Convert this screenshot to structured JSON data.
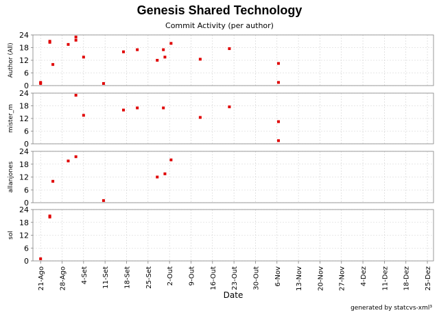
{
  "title": "Genesis Shared Technology",
  "subtitle": "Commit Activity (per author)",
  "footer": "generated by statcvs-xml³",
  "chart_data": {
    "type": "scatter",
    "xlabel": "Date",
    "x_ticks": [
      "21-Ago",
      "28-Ago",
      "4-Set",
      "11-Set",
      "18-Set",
      "25-Set",
      "2-Out",
      "9-Out",
      "16-Out",
      "23-Out",
      "30-Out",
      "6-Nov",
      "13-Nov",
      "20-Nov",
      "27-Nov",
      "4-Dez",
      "11-Dez",
      "18-Dez",
      "25-Dez"
    ],
    "x_range_days": [
      -2.5,
      128
    ],
    "ylim": [
      0,
      24
    ],
    "y_ticks": [
      0,
      6,
      12,
      18,
      24
    ],
    "grid": true,
    "series": [
      {
        "name": "Author (All)",
        "points": [
          [
            0,
            1
          ],
          [
            0,
            1.5
          ],
          [
            3,
            20.5
          ],
          [
            3,
            21
          ],
          [
            4,
            10
          ],
          [
            9,
            19.5
          ],
          [
            11.5,
            21.5
          ],
          [
            11.5,
            23
          ],
          [
            14,
            13.5
          ],
          [
            20.5,
            1
          ],
          [
            27,
            16
          ],
          [
            31.5,
            17
          ],
          [
            38,
            12
          ],
          [
            40,
            17
          ],
          [
            40.5,
            13.5
          ],
          [
            42.5,
            20
          ],
          [
            52,
            12.5
          ],
          [
            61.5,
            17.5
          ],
          [
            77.5,
            10.5
          ],
          [
            77.5,
            1.5
          ]
        ]
      },
      {
        "name": "mister_m",
        "points": [
          [
            11.5,
            23
          ],
          [
            14,
            13.5
          ],
          [
            27,
            16
          ],
          [
            31.5,
            17
          ],
          [
            40,
            17
          ],
          [
            52,
            12.5
          ],
          [
            61.5,
            17.5
          ],
          [
            77.5,
            10.5
          ],
          [
            77.5,
            1.5
          ]
        ]
      },
      {
        "name": "allanjones",
        "points": [
          [
            4,
            10
          ],
          [
            9,
            19.5
          ],
          [
            11.5,
            21.5
          ],
          [
            20.5,
            1
          ],
          [
            38,
            12
          ],
          [
            40.5,
            13.5
          ],
          [
            42.5,
            20
          ]
        ]
      },
      {
        "name": "sol",
        "points": [
          [
            0,
            1
          ],
          [
            3,
            20.5
          ],
          [
            3,
            21
          ]
        ]
      }
    ]
  }
}
